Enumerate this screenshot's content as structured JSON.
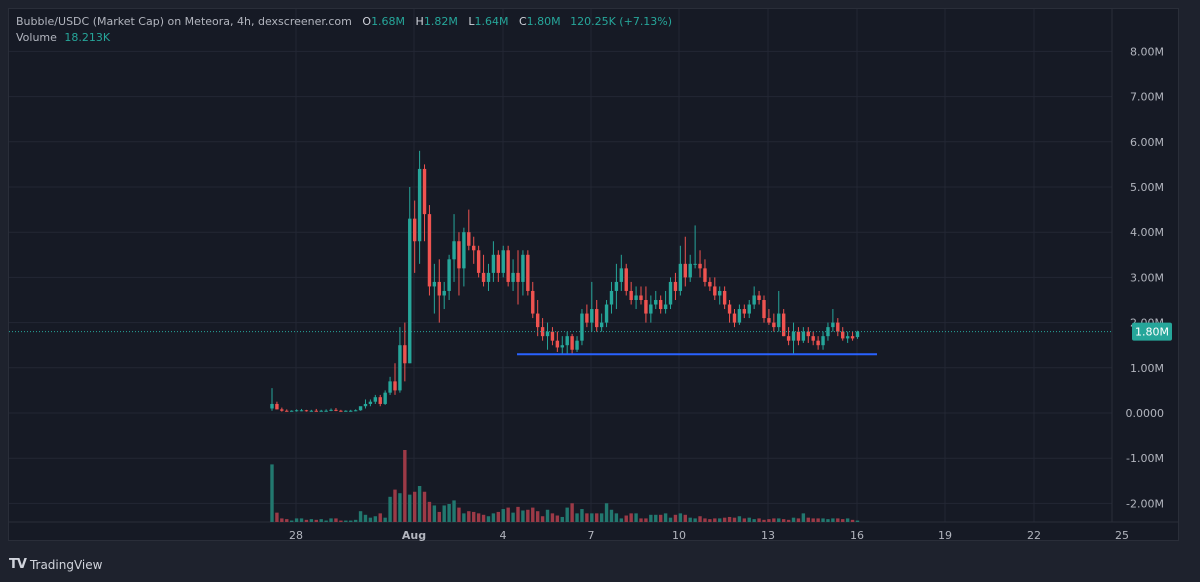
{
  "header": {
    "symbol_line": "Bubble/USDC (Market Cap) on Meteora, 4h, dexscreener.com",
    "ohlc": {
      "O_label": "O",
      "O": "1.68M",
      "H_label": "H",
      "H": "1.82M",
      "L_label": "L",
      "L": "1.64M",
      "C_label": "C",
      "C": "1.80M",
      "change": "120.25K (+7.13%)"
    },
    "volume_label": "Volume",
    "volume_value": "18.213K"
  },
  "price_axis": {
    "labels": [
      "8.00M",
      "7.00M",
      "6.00M",
      "5.00M",
      "4.00M",
      "3.00M",
      "2.00M",
      "1.00M",
      "0.0000",
      "-1.00M",
      "-2.00M"
    ],
    "current_price_label": "1.80M"
  },
  "time_axis": {
    "labels": [
      "28",
      "Aug",
      "4",
      "7",
      "10",
      "13",
      "16",
      "19",
      "22",
      "25"
    ]
  },
  "footer": {
    "brand": "TradingView"
  },
  "colors": {
    "up": "#26a69a",
    "down": "#ef5350",
    "vol_up": "#22786f",
    "vol_down": "#9c3a47",
    "hline": "#2962ff",
    "price_badge": "#26a69a",
    "grid": "#232734"
  },
  "chart_data": {
    "type": "candlestick",
    "title": "Bubble/USDC (Market Cap) on Meteora, 4h, dexscreener.com",
    "xlabel": "",
    "ylabel": "Market Cap",
    "ylim": [
      -2.4,
      8.8
    ],
    "grid": true,
    "x_ticks": [
      "28",
      "Aug",
      "4",
      "7",
      "10",
      "13",
      "16",
      "19",
      "22",
      "25"
    ],
    "y_ticks": [
      8,
      7,
      6,
      5,
      4,
      3,
      2,
      1,
      0,
      -1,
      -2
    ],
    "current_price": 1.8,
    "horizontal_line": {
      "value": 1.3,
      "from_index": 50,
      "to_index": 123,
      "color": "#2962ff"
    },
    "candles": [
      [
        0.1,
        0.55,
        0.05,
        0.2
      ],
      [
        0.2,
        0.25,
        0.08,
        0.08
      ],
      [
        0.08,
        0.12,
        0.03,
        0.05
      ],
      [
        0.05,
        0.08,
        0.03,
        0.04
      ],
      [
        0.04,
        0.06,
        0.03,
        0.05
      ],
      [
        0.05,
        0.08,
        0.03,
        0.06
      ],
      [
        0.06,
        0.09,
        0.04,
        0.06
      ],
      [
        0.06,
        0.07,
        0.03,
        0.04
      ],
      [
        0.04,
        0.07,
        0.03,
        0.05
      ],
      [
        0.05,
        0.09,
        0.03,
        0.04
      ],
      [
        0.04,
        0.07,
        0.03,
        0.05
      ],
      [
        0.05,
        0.08,
        0.03,
        0.05
      ],
      [
        0.05,
        0.1,
        0.04,
        0.07
      ],
      [
        0.07,
        0.11,
        0.04,
        0.05
      ],
      [
        0.05,
        0.07,
        0.03,
        0.04
      ],
      [
        0.04,
        0.06,
        0.03,
        0.05
      ],
      [
        0.05,
        0.07,
        0.03,
        0.05
      ],
      [
        0.05,
        0.08,
        0.04,
        0.06
      ],
      [
        0.06,
        0.1,
        0.05,
        0.15
      ],
      [
        0.15,
        0.3,
        0.1,
        0.2
      ],
      [
        0.2,
        0.3,
        0.15,
        0.25
      ],
      [
        0.25,
        0.4,
        0.2,
        0.35
      ],
      [
        0.35,
        0.4,
        0.15,
        0.2
      ],
      [
        0.2,
        0.5,
        0.18,
        0.45
      ],
      [
        0.45,
        0.8,
        0.4,
        0.7
      ],
      [
        0.7,
        1.1,
        0.4,
        0.5
      ],
      [
        0.5,
        1.9,
        0.45,
        1.5
      ],
      [
        1.5,
        2.0,
        0.7,
        1.1
      ],
      [
        1.1,
        5.0,
        1.1,
        4.3
      ],
      [
        4.3,
        4.7,
        3.1,
        3.8
      ],
      [
        3.8,
        5.8,
        3.3,
        5.4
      ],
      [
        5.4,
        5.5,
        3.8,
        4.4
      ],
      [
        4.4,
        4.6,
        2.6,
        2.8
      ],
      [
        2.8,
        3.3,
        2.2,
        2.9
      ],
      [
        2.9,
        3.4,
        2.0,
        2.6
      ],
      [
        2.6,
        2.9,
        2.3,
        2.7
      ],
      [
        2.7,
        3.5,
        2.5,
        3.4
      ],
      [
        3.4,
        4.4,
        2.9,
        3.8
      ],
      [
        3.8,
        4.0,
        2.6,
        3.2
      ],
      [
        3.2,
        4.1,
        2.8,
        4.0
      ],
      [
        4.0,
        4.5,
        3.6,
        3.7
      ],
      [
        3.7,
        3.9,
        3.3,
        3.6
      ],
      [
        3.6,
        3.7,
        3.0,
        3.1
      ],
      [
        3.1,
        3.5,
        2.8,
        2.9
      ],
      [
        2.9,
        3.3,
        2.7,
        3.1
      ],
      [
        3.1,
        3.8,
        2.9,
        3.5
      ],
      [
        3.5,
        3.6,
        2.9,
        3.1
      ],
      [
        3.1,
        3.7,
        3.0,
        3.6
      ],
      [
        3.6,
        3.7,
        2.8,
        2.9
      ],
      [
        2.9,
        3.4,
        2.7,
        3.1
      ],
      [
        3.1,
        3.6,
        2.4,
        2.9
      ],
      [
        2.9,
        3.6,
        2.6,
        3.5
      ],
      [
        3.5,
        3.6,
        2.6,
        2.7
      ],
      [
        2.7,
        2.9,
        2.1,
        2.2
      ],
      [
        2.2,
        2.5,
        1.7,
        1.9
      ],
      [
        1.9,
        2.1,
        1.6,
        1.7
      ],
      [
        1.7,
        2.0,
        1.4,
        1.8
      ],
      [
        1.8,
        1.9,
        1.5,
        1.6
      ],
      [
        1.6,
        1.8,
        1.35,
        1.45
      ],
      [
        1.45,
        1.7,
        1.3,
        1.5
      ],
      [
        1.5,
        1.8,
        1.3,
        1.7
      ],
      [
        1.7,
        1.75,
        1.3,
        1.4
      ],
      [
        1.4,
        1.7,
        1.35,
        1.6
      ],
      [
        1.6,
        2.3,
        1.5,
        2.2
      ],
      [
        2.2,
        2.4,
        1.9,
        2.0
      ],
      [
        2.0,
        2.9,
        1.8,
        2.3
      ],
      [
        2.3,
        2.5,
        1.8,
        1.9
      ],
      [
        1.9,
        2.2,
        1.8,
        2.0
      ],
      [
        2.0,
        2.5,
        1.9,
        2.4
      ],
      [
        2.4,
        2.9,
        2.2,
        2.7
      ],
      [
        2.7,
        3.3,
        2.3,
        2.9
      ],
      [
        2.9,
        3.5,
        2.7,
        3.2
      ],
      [
        3.2,
        3.3,
        2.6,
        2.7
      ],
      [
        2.7,
        2.9,
        2.4,
        2.5
      ],
      [
        2.5,
        2.8,
        2.3,
        2.6
      ],
      [
        2.6,
        2.8,
        2.4,
        2.5
      ],
      [
        2.5,
        2.8,
        2.0,
        2.2
      ],
      [
        2.2,
        2.6,
        2.0,
        2.4
      ],
      [
        2.4,
        2.7,
        2.3,
        2.5
      ],
      [
        2.5,
        2.6,
        2.2,
        2.3
      ],
      [
        2.3,
        2.7,
        2.2,
        2.4
      ],
      [
        2.4,
        3.0,
        2.3,
        2.9
      ],
      [
        2.9,
        3.1,
        2.5,
        2.7
      ],
      [
        2.7,
        3.7,
        2.6,
        3.3
      ],
      [
        3.3,
        3.9,
        2.8,
        3.0
      ],
      [
        3.0,
        3.5,
        2.9,
        3.3
      ],
      [
        3.3,
        4.15,
        3.2,
        3.3
      ],
      [
        3.3,
        3.6,
        3.0,
        3.2
      ],
      [
        3.2,
        3.4,
        2.8,
        2.9
      ],
      [
        2.9,
        3.0,
        2.7,
        2.8
      ],
      [
        2.8,
        3.0,
        2.5,
        2.6
      ],
      [
        2.6,
        2.8,
        2.4,
        2.7
      ],
      [
        2.7,
        2.8,
        2.3,
        2.4
      ],
      [
        2.4,
        2.5,
        2.0,
        2.2
      ],
      [
        2.2,
        2.3,
        1.9,
        2.0
      ],
      [
        2.0,
        2.4,
        1.95,
        2.3
      ],
      [
        2.3,
        2.4,
        2.1,
        2.2
      ],
      [
        2.2,
        2.5,
        2.1,
        2.4
      ],
      [
        2.4,
        2.8,
        2.3,
        2.6
      ],
      [
        2.6,
        2.7,
        2.4,
        2.5
      ],
      [
        2.5,
        2.6,
        2.0,
        2.1
      ],
      [
        2.1,
        2.3,
        1.95,
        2.0
      ],
      [
        2.0,
        2.2,
        1.8,
        1.9
      ],
      [
        1.9,
        2.7,
        1.8,
        2.2
      ],
      [
        2.2,
        2.3,
        1.7,
        1.7
      ],
      [
        1.7,
        1.9,
        1.5,
        1.6
      ],
      [
        1.6,
        2.0,
        1.3,
        1.8
      ],
      [
        1.8,
        1.9,
        1.5,
        1.6
      ],
      [
        1.6,
        1.9,
        1.55,
        1.8
      ],
      [
        1.8,
        1.9,
        1.55,
        1.7
      ],
      [
        1.7,
        1.8,
        1.5,
        1.6
      ],
      [
        1.6,
        1.7,
        1.4,
        1.5
      ],
      [
        1.5,
        1.8,
        1.4,
        1.7
      ],
      [
        1.7,
        2.0,
        1.6,
        1.9
      ],
      [
        1.9,
        2.3,
        1.8,
        2.0
      ],
      [
        2.0,
        2.1,
        1.7,
        1.8
      ],
      [
        1.8,
        1.9,
        1.6,
        1.65
      ],
      [
        1.65,
        1.8,
        1.55,
        1.7
      ],
      [
        1.7,
        1.8,
        1.6,
        1.65
      ],
      [
        1.68,
        1.82,
        1.64,
        1.8
      ]
    ],
    "volume": [
      0.8,
      0.13,
      0.05,
      0.04,
      0.02,
      0.05,
      0.05,
      0.03,
      0.04,
      0.03,
      0.04,
      0.02,
      0.05,
      0.05,
      0.02,
      0.02,
      0.02,
      0.03,
      0.15,
      0.1,
      0.06,
      0.08,
      0.12,
      0.06,
      0.35,
      0.45,
      0.4,
      1.0,
      0.38,
      0.42,
      0.5,
      0.42,
      0.28,
      0.23,
      0.14,
      0.23,
      0.25,
      0.3,
      0.2,
      0.12,
      0.15,
      0.14,
      0.12,
      0.1,
      0.08,
      0.12,
      0.14,
      0.18,
      0.2,
      0.13,
      0.21,
      0.16,
      0.17,
      0.2,
      0.15,
      0.08,
      0.17,
      0.12,
      0.09,
      0.07,
      0.2,
      0.26,
      0.12,
      0.18,
      0.12,
      0.12,
      0.12,
      0.12,
      0.26,
      0.17,
      0.12,
      0.05,
      0.09,
      0.12,
      0.12,
      0.05,
      0.05,
      0.1,
      0.1,
      0.1,
      0.12,
      0.06,
      0.1,
      0.12,
      0.1,
      0.06,
      0.05,
      0.08,
      0.05,
      0.04,
      0.05,
      0.05,
      0.06,
      0.07,
      0.06,
      0.08,
      0.05,
      0.06,
      0.04,
      0.05,
      0.03,
      0.04,
      0.05,
      0.05,
      0.04,
      0.03,
      0.06,
      0.05,
      0.12,
      0.06,
      0.05,
      0.05,
      0.05,
      0.04,
      0.05,
      0.05,
      0.04,
      0.05,
      0.03,
      0.02
    ]
  }
}
